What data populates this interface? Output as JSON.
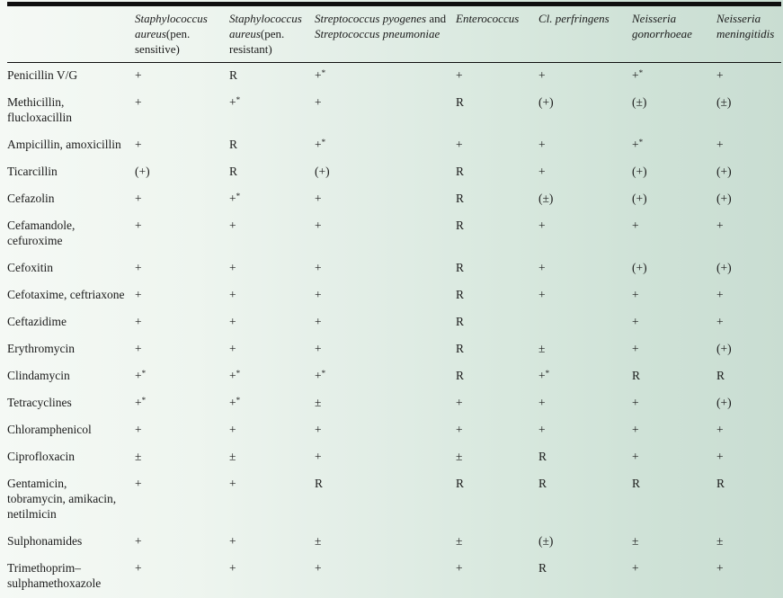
{
  "colors": {
    "rule": "#0f0f0f",
    "text": "#1b1b1b",
    "background_left": "#f5f9f5",
    "background_right": "#c9ddd2"
  },
  "table": {
    "corner_label": "",
    "columns": [
      {
        "name": "staph-aureus-pen-sensitive",
        "parts": [
          {
            "text": "Staphylococcus aureus",
            "italic": true
          },
          {
            "text": "(pen. sensitive)",
            "italic": false
          }
        ]
      },
      {
        "name": "staph-aureus-pen-resistant",
        "parts": [
          {
            "text": "Staphylococcus aureus",
            "italic": true
          },
          {
            "text": "(pen. resistant)",
            "italic": false
          }
        ]
      },
      {
        "name": "strep-pyogenes-and-pneumoniae",
        "parts": [
          {
            "text": "Streptococcus pyogenes",
            "italic": true
          },
          {
            "text": " and ",
            "italic": false
          },
          {
            "text": "Streptococcus pneumoniae",
            "italic": true
          }
        ]
      },
      {
        "name": "enterococcus",
        "parts": [
          {
            "text": "Enterococcus",
            "italic": true
          }
        ]
      },
      {
        "name": "cl-perfringens",
        "parts": [
          {
            "text": "Cl. perfringens",
            "italic": true
          }
        ]
      },
      {
        "name": "neisseria-gonorrhoeae",
        "parts": [
          {
            "text": "Neisseria gonorrhoeae",
            "italic": true
          }
        ]
      },
      {
        "name": "neisseria-meningitidis",
        "parts": [
          {
            "text": "Neisseria meningitidis",
            "italic": true
          }
        ]
      }
    ],
    "rows": [
      {
        "label": "Penicillin V/G",
        "values": [
          "+",
          "R",
          "+*",
          "+",
          "+",
          "+*",
          "+"
        ]
      },
      {
        "label": "Methicillin, flucloxacillin",
        "values": [
          "+",
          "+*",
          "+",
          "R",
          "(+)",
          "(±)",
          "(±)"
        ]
      },
      {
        "label": "Ampicillin, amoxicillin",
        "values": [
          "+",
          "R",
          "+*",
          "+",
          "+",
          "+*",
          "+"
        ]
      },
      {
        "label": "Ticarcillin",
        "values": [
          "(+)",
          "R",
          "(+)",
          "R",
          "+",
          "(+)",
          "(+)"
        ]
      },
      {
        "label": "Cefazolin",
        "values": [
          "+",
          "+*",
          "+",
          "R",
          "(±)",
          "(+)",
          "(+)"
        ]
      },
      {
        "label": "Cefamandole, cefuroxime",
        "values": [
          "+",
          "+",
          "+",
          "R",
          "+",
          "+",
          "+"
        ]
      },
      {
        "label": "Cefoxitin",
        "values": [
          "+",
          "+",
          "+",
          "R",
          "+",
          "(+)",
          "(+)"
        ]
      },
      {
        "label": "Cefotaxime, ceftriaxone",
        "values": [
          "+",
          "+",
          "+",
          "R",
          "+",
          "+",
          "+"
        ]
      },
      {
        "label": "Ceftazidime",
        "values": [
          "+",
          "+",
          "+",
          "R",
          "",
          "+",
          "+"
        ]
      },
      {
        "label": "Erythromycin",
        "values": [
          "+",
          "+",
          "+",
          "R",
          "±",
          "+",
          "(+)"
        ]
      },
      {
        "label": "Clindamycin",
        "values": [
          "+*",
          "+*",
          "+*",
          "R",
          "+*",
          "R",
          "R"
        ]
      },
      {
        "label": "Tetracyclines",
        "values": [
          "+*",
          "+*",
          "±",
          "+",
          "+",
          "+",
          "(+)"
        ]
      },
      {
        "label": "Chloramphenicol",
        "values": [
          "+",
          "+",
          "+",
          "+",
          "+",
          "+",
          "+"
        ]
      },
      {
        "label": "Ciprofloxacin",
        "values": [
          "±",
          "±",
          "+",
          "±",
          "R",
          "+",
          "+"
        ]
      },
      {
        "label": "Gentamicin, tobramycin, amikacin, netilmicin",
        "values": [
          "+",
          "+",
          "R",
          "R",
          "R",
          "R",
          "R"
        ]
      },
      {
        "label": "Sulphonamides",
        "values": [
          "+",
          "+",
          "±",
          "±",
          "(±)",
          "±",
          "±"
        ]
      },
      {
        "label": "Trimethoprim–sulphamethoxazole",
        "values": [
          "+",
          "+",
          "+",
          "+",
          "R",
          "+",
          "+"
        ]
      }
    ]
  }
}
